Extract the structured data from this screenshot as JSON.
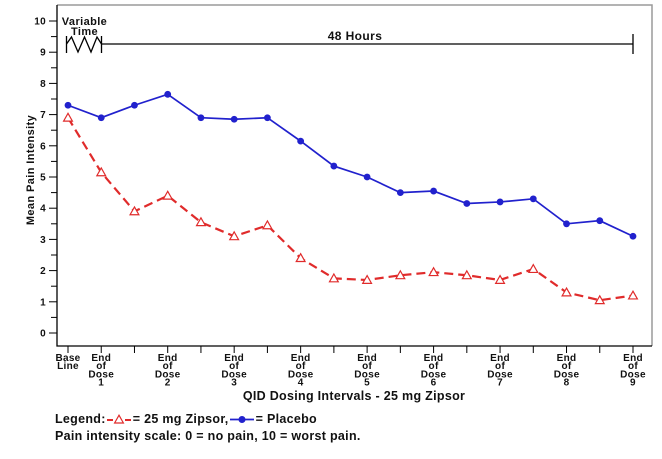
{
  "figure": {
    "y_axis_label": "Mean Pain Intensity",
    "x_axis_title": "QID Dosing Intervals - 25 mg Zipsor",
    "footnote": "Pain intensity scale: 0 = no pain, 10 = worst pain."
  },
  "legend": {
    "prefix": "Legend:",
    "zipsor_label": "= 25 mg Zipsor,",
    "placebo_label": "= Placebo",
    "zipsor_marker": "open-triangle-dashed-red",
    "placebo_marker": "filled-circle-solid-blue"
  },
  "chart_data": {
    "type": "line",
    "title": "",
    "xlabel": "QID Dosing Intervals - 25 mg Zipsor",
    "ylabel": "Mean Pain Intensity",
    "ylim": [
      0,
      10
    ],
    "y_tick_labels": [
      "0",
      "1",
      "2",
      "3",
      "4",
      "5",
      "6",
      "7",
      "8",
      "9",
      "10"
    ],
    "y_minor_tick_interval": 0.5,
    "grid": false,
    "legend_position": "bottom-left",
    "n_points": 18,
    "x_tick_labels": [
      {
        "index": 0,
        "lines": [
          "Base",
          "Line"
        ]
      },
      {
        "index": 1,
        "lines": [
          "End",
          "of",
          "Dose",
          "1"
        ]
      },
      {
        "index": 3,
        "lines": [
          "End",
          "of",
          "Dose",
          "2"
        ]
      },
      {
        "index": 5,
        "lines": [
          "End",
          "of",
          "Dose",
          "3"
        ]
      },
      {
        "index": 7,
        "lines": [
          "End",
          "of",
          "Dose",
          "4"
        ]
      },
      {
        "index": 9,
        "lines": [
          "End",
          "of",
          "Dose",
          "5"
        ]
      },
      {
        "index": 11,
        "lines": [
          "End",
          "of",
          "Dose",
          "6"
        ]
      },
      {
        "index": 13,
        "lines": [
          "End",
          "of",
          "Dose",
          "7"
        ]
      },
      {
        "index": 15,
        "lines": [
          "End",
          "of",
          "Dose",
          "8"
        ]
      },
      {
        "index": 17,
        "lines": [
          "End",
          "of",
          "Dose",
          "9"
        ]
      }
    ],
    "series": [
      {
        "name": "25 mg Zipsor",
        "color": "#e02b2b",
        "line_style": "dashed",
        "marker": "open-triangle",
        "values": [
          6.9,
          5.15,
          3.9,
          4.4,
          3.55,
          3.1,
          3.45,
          2.4,
          1.75,
          1.7,
          1.85,
          1.95,
          1.85,
          1.7,
          2.05,
          1.3,
          1.05,
          1.2
        ]
      },
      {
        "name": "Placebo",
        "color": "#2121cd",
        "line_style": "solid",
        "marker": "filled-circle",
        "values": [
          7.3,
          6.9,
          7.3,
          7.65,
          6.9,
          6.85,
          6.9,
          6.15,
          5.35,
          5.0,
          4.5,
          4.55,
          4.15,
          4.2,
          4.3,
          3.5,
          3.6,
          3.1
        ]
      }
    ],
    "annotations": {
      "variable_time_lines": [
        "Variable",
        "Time"
      ],
      "duration": "48 Hours"
    }
  }
}
